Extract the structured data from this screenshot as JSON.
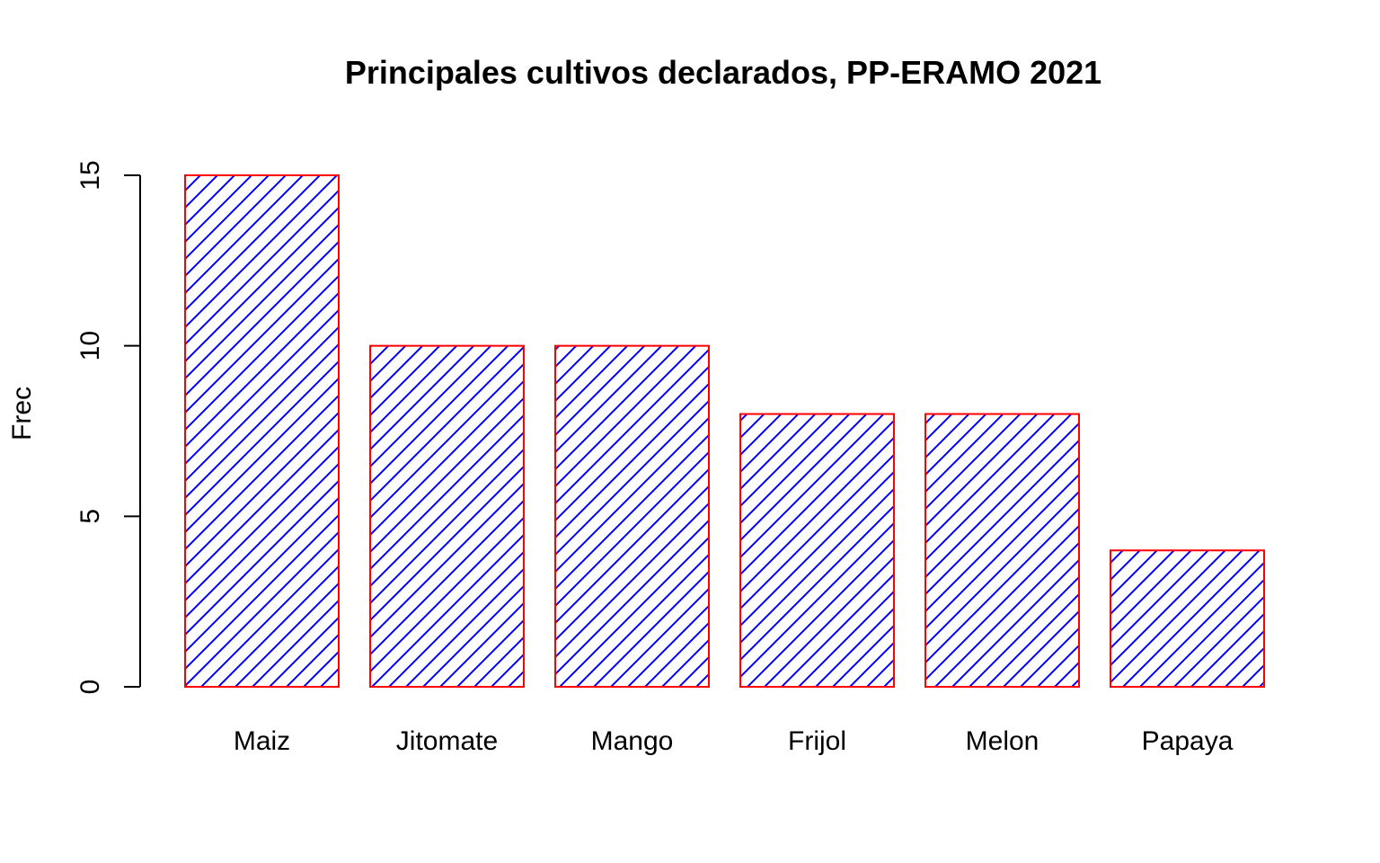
{
  "chart_data": {
    "type": "bar",
    "title": "Principales cultivos declarados, PP-ERAMO 2021",
    "xlabel": "",
    "ylabel": "Frec",
    "categories": [
      "Maiz",
      "Jitomate",
      "Mango",
      "Frijol",
      "Melon",
      "Papaya"
    ],
    "values": [
      15,
      10,
      10,
      8,
      8,
      4
    ],
    "ylim": [
      0,
      15
    ],
    "yticks": [
      0,
      5,
      10,
      15
    ],
    "ytick_labels": [
      "0",
      "5",
      "10",
      "15"
    ],
    "grid": false,
    "legend": "none",
    "bar_fill_pattern": "diagonal-hatch",
    "colors": {
      "hatch": "#0000FF",
      "border": "#FF0000",
      "axis": "#000000",
      "background": "#FFFFFF"
    }
  }
}
